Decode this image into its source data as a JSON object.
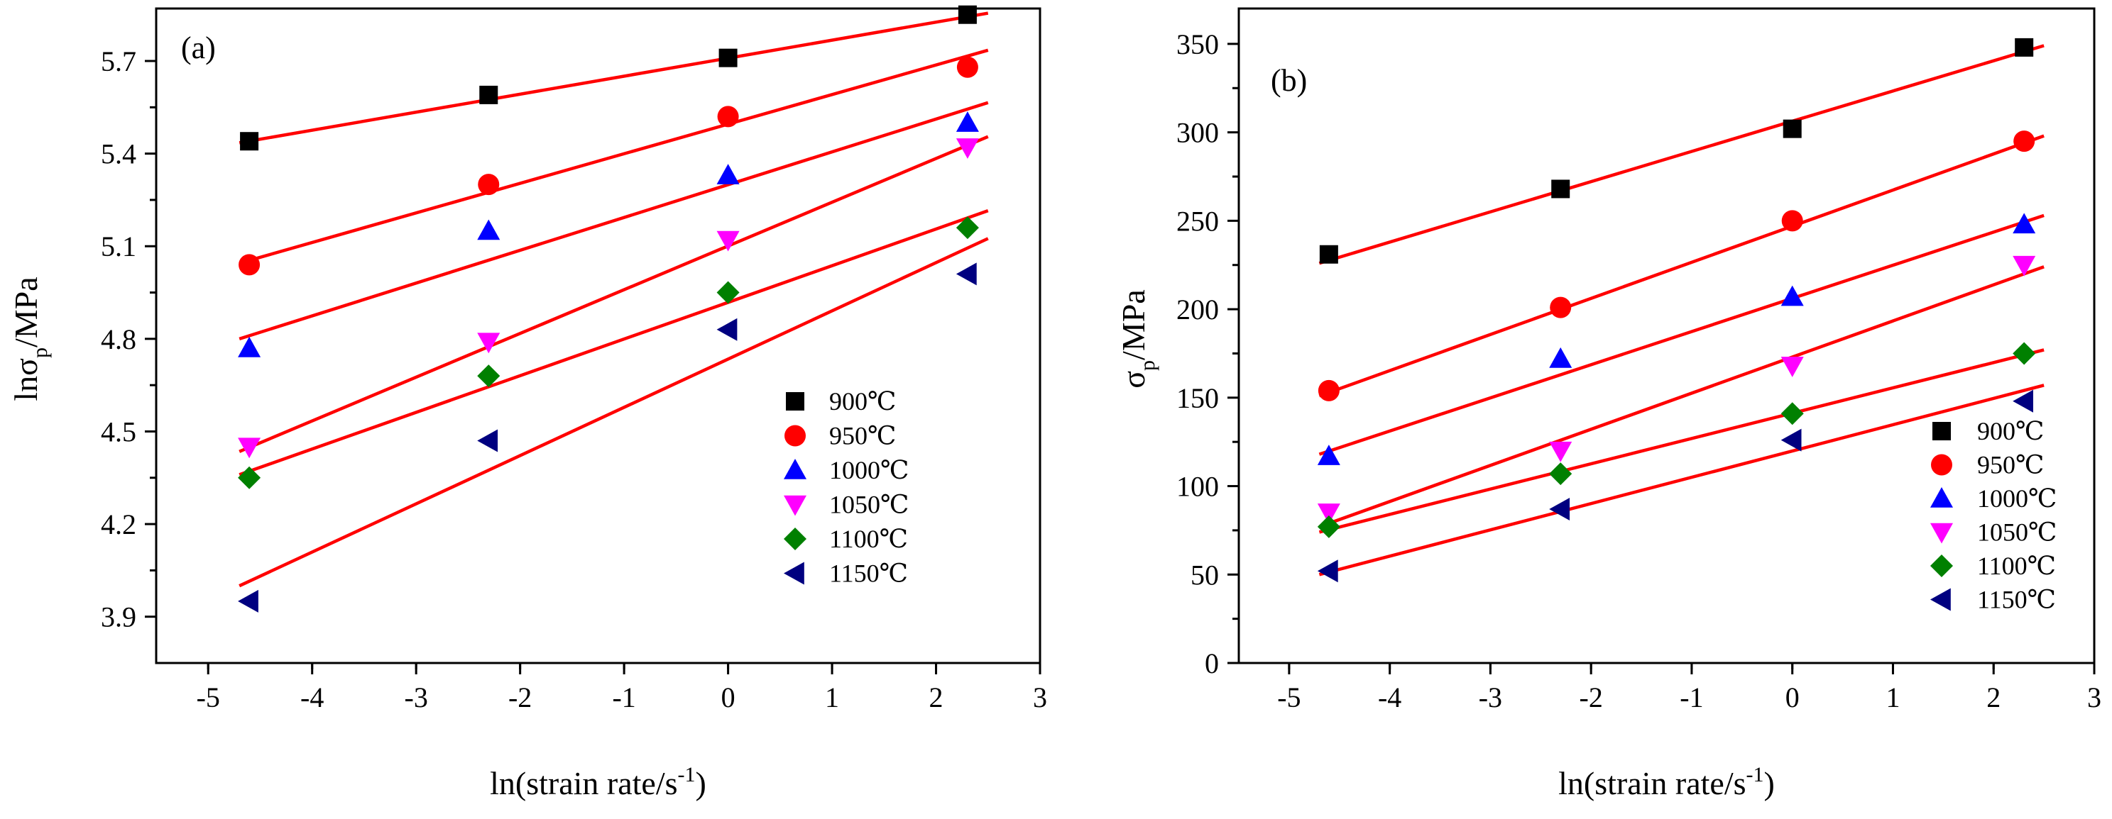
{
  "chart_data": [
    {
      "type": "scatter",
      "panel_label": "(a)",
      "xlabel": {
        "main": "ln(strain rate/s",
        "sup": "-1",
        "tail": ")"
      },
      "ylabel": {
        "main": "lnσ",
        "sub": "p",
        "tail": "/MPa"
      },
      "xlim": [
        -5.5,
        3
      ],
      "ylim": [
        3.75,
        5.87
      ],
      "x_ticks": [
        -5,
        -4,
        -3,
        -2,
        -1,
        0,
        1,
        2,
        3
      ],
      "y_ticks": [
        3.9,
        4.2,
        4.5,
        4.8,
        5.1,
        5.4,
        5.7
      ],
      "y_tick_labels": [
        "3.9",
        "4.2",
        "4.5",
        "4.8",
        "5.1",
        "5.4",
        "5.7"
      ],
      "legend_position": "bottom-right",
      "x": [
        -4.605,
        -2.303,
        0,
        2.303
      ],
      "series": [
        {
          "name": "900℃",
          "marker": "square",
          "color": "#000000",
          "values": [
            5.44,
            5.59,
            5.71,
            5.85
          ],
          "fit": {
            "x": [
              -4.7,
              2.5
            ],
            "y": [
              5.435,
              5.855
            ]
          }
        },
        {
          "name": "950℃",
          "marker": "circle",
          "color": "#ff0000",
          "values": [
            5.04,
            5.3,
            5.52,
            5.68
          ],
          "fit": {
            "x": [
              -4.7,
              2.5
            ],
            "y": [
              5.045,
              5.735
            ]
          }
        },
        {
          "name": "1000℃",
          "marker": "triangle-up",
          "color": "#0000ff",
          "values": [
            4.77,
            5.15,
            5.33,
            5.5
          ],
          "fit": {
            "x": [
              -4.7,
              2.5
            ],
            "y": [
              4.8,
              5.565
            ]
          }
        },
        {
          "name": "1050℃",
          "marker": "triangle-down",
          "color": "#ff00ff",
          "values": [
            4.45,
            4.79,
            5.12,
            5.42
          ],
          "fit": {
            "x": [
              -4.7,
              2.5
            ],
            "y": [
              4.435,
              5.455
            ]
          }
        },
        {
          "name": "1100℃",
          "marker": "diamond",
          "color": "#008000",
          "values": [
            4.35,
            4.68,
            4.95,
            5.16
          ],
          "fit": {
            "x": [
              -4.7,
              2.5
            ],
            "y": [
              4.36,
              5.215
            ]
          }
        },
        {
          "name": "1150℃",
          "marker": "triangle-left",
          "color": "#000080",
          "values": [
            3.95,
            4.47,
            4.83,
            5.01
          ],
          "fit": {
            "x": [
              -4.7,
              2.5
            ],
            "y": [
              4.0,
              5.125
            ]
          }
        }
      ]
    },
    {
      "type": "scatter",
      "panel_label": "(b)",
      "xlabel": {
        "main": "ln(strain rate/s",
        "sup": "-1",
        "tail": ")"
      },
      "ylabel": {
        "main": "σ",
        "sub": "p",
        "tail": "/MPa"
      },
      "xlim": [
        -5.5,
        3
      ],
      "ylim": [
        0,
        370
      ],
      "x_ticks": [
        -5,
        -4,
        -3,
        -2,
        -1,
        0,
        1,
        2,
        3
      ],
      "y_ticks": [
        0,
        50,
        100,
        150,
        200,
        250,
        300,
        350
      ],
      "y_tick_labels": [
        "0",
        "50",
        "100",
        "150",
        "200",
        "250",
        "300",
        "350"
      ],
      "legend_position": "bottom-right",
      "x": [
        -4.605,
        -2.303,
        0,
        2.303
      ],
      "series": [
        {
          "name": "900℃",
          "marker": "square",
          "color": "#000000",
          "values": [
            231,
            268,
            302,
            348
          ],
          "fit": {
            "x": [
              -4.7,
              2.5
            ],
            "y": [
              226,
              349
            ]
          }
        },
        {
          "name": "950℃",
          "marker": "circle",
          "color": "#ff0000",
          "values": [
            154,
            201,
            250,
            295
          ],
          "fit": {
            "x": [
              -4.7,
              2.5
            ],
            "y": [
              151,
              298
            ]
          }
        },
        {
          "name": "1000℃",
          "marker": "triangle-up",
          "color": "#0000ff",
          "values": [
            117,
            172,
            207,
            248
          ],
          "fit": {
            "x": [
              -4.7,
              2.5
            ],
            "y": [
              118,
              253
            ]
          }
        },
        {
          "name": "1050℃",
          "marker": "triangle-down",
          "color": "#ff00ff",
          "values": [
            85,
            120,
            168,
            225
          ],
          "fit": {
            "x": [
              -4.7,
              2.5
            ],
            "y": [
              77,
              224
            ]
          }
        },
        {
          "name": "1100℃",
          "marker": "diamond",
          "color": "#008000",
          "values": [
            77,
            107,
            141,
            175
          ],
          "fit": {
            "x": [
              -4.7,
              2.5
            ],
            "y": [
              74,
              177
            ]
          }
        },
        {
          "name": "1150℃",
          "marker": "triangle-left",
          "color": "#000080",
          "values": [
            52,
            87,
            126,
            148
          ],
          "fit": {
            "x": [
              -4.7,
              2.5
            ],
            "y": [
              50,
              157
            ]
          }
        }
      ]
    }
  ]
}
